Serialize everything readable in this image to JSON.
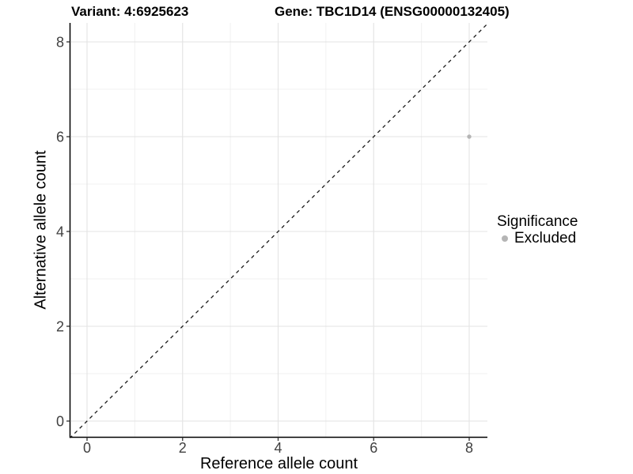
{
  "chart_data": {
    "type": "scatter",
    "title_left": "Variant: 4:6925623",
    "title_right": "Gene: TBC1D14 (ENSG00000132405)",
    "xlabel": "Reference allele count",
    "ylabel": "Alternative allele count",
    "xlim": [
      -0.35,
      8.4
    ],
    "ylim": [
      -0.35,
      8.4
    ],
    "x_major_ticks": [
      0,
      2,
      4,
      6,
      8
    ],
    "y_major_ticks": [
      0,
      2,
      4,
      6,
      8
    ],
    "x_minor_ticks": [
      1,
      3,
      5,
      7
    ],
    "y_minor_ticks": [
      1,
      3,
      5,
      7
    ],
    "grid": true,
    "series": [
      {
        "name": "Excluded",
        "color": "#b5b5b5",
        "points": [
          {
            "x": 8,
            "y": 6
          }
        ]
      }
    ],
    "reference_line": {
      "slope": 1,
      "intercept": 0,
      "style": "dashed",
      "color": "#1a1a1a",
      "meaning": "identity line y = x"
    },
    "legend": {
      "title": "Significance",
      "position": "right",
      "items": [
        {
          "label": "Excluded",
          "color": "#b5b5b5"
        }
      ]
    }
  },
  "style": {
    "background": "#ffffff",
    "grid_major": "#e3e3e3",
    "grid_minor": "#f0f0f0",
    "axis_line": "#000000",
    "tick_color": "#333333",
    "tick_label_color": "#404040"
  }
}
